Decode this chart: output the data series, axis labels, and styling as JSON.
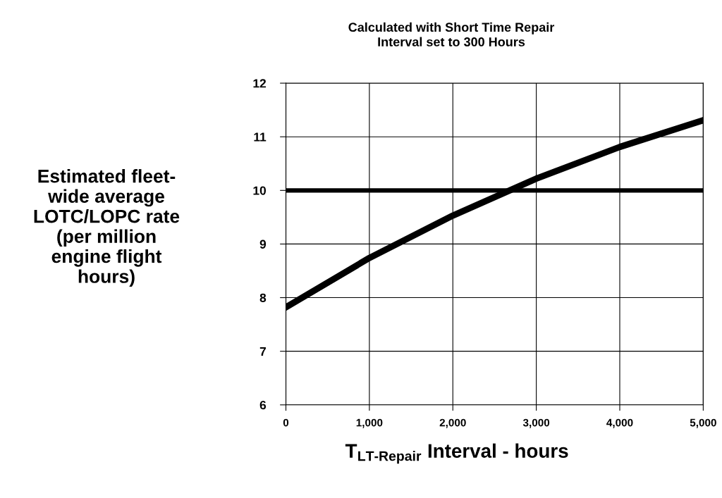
{
  "chart_data": {
    "type": "line",
    "title": "Calculated with Short Time Repair\nInterval set to 300 Hours",
    "xlabel": "T$_{LT-Repair}$ Interval - hours",
    "ylabel": "Estimated fleet-\nwide average\nLOTC/LOPC rate\n(per million\nengine flight\nhours)",
    "x": [
      0,
      1000,
      2000,
      3000,
      4000,
      5000
    ],
    "series": [
      {
        "color": "#000000",
        "values": [
          7.82,
          8.74,
          9.53,
          10.22,
          10.81,
          11.31
        ]
      }
    ],
    "ref_lines": [
      {
        "axis": "y",
        "value": 10,
        "color": "#000000"
      }
    ],
    "xlim": [
      0,
      5000
    ],
    "xticks": [
      0,
      {
        "value": 1000,
        "label": "1,000"
      },
      {
        "value": 2000,
        "label": "2,000"
      },
      {
        "value": 3000,
        "label": "3,000"
      },
      {
        "value": 4000,
        "label": "4,000"
      },
      {
        "value": 5000,
        "label": "5,000"
      }
    ],
    "ylim": [
      6,
      12
    ],
    "yticks": [
      6,
      7,
      8,
      9,
      10,
      11,
      12
    ],
    "grid": true,
    "marker": "none",
    "line_style": "solid"
  }
}
